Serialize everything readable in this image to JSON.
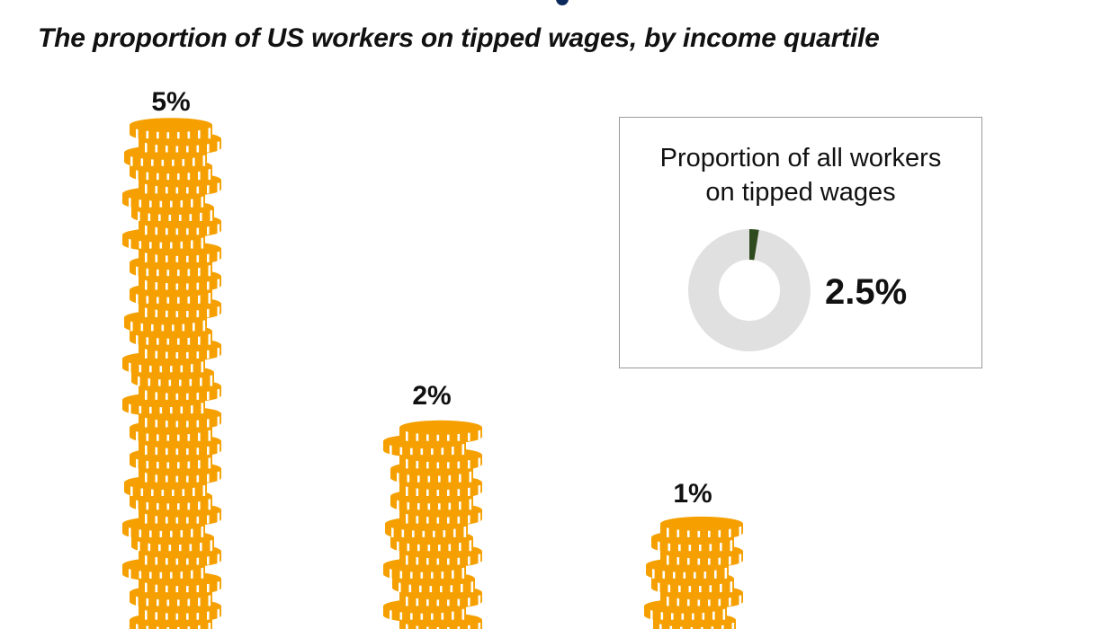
{
  "subtitle": "The proportion of US workers on tipped wages, by income quartile",
  "chart_data": {
    "type": "bar",
    "style": "stacked-coin-pictograph",
    "subtitle": "The proportion of US workers on tipped wages, by income quartile",
    "categories": [
      "",
      "",
      ""
    ],
    "values": [
      5,
      2,
      1
    ],
    "value_labels": [
      "5%",
      "2%",
      "1%"
    ],
    "unit": "%",
    "colors": {
      "coin": "#f5a000",
      "coin_ridge": "#ffffff",
      "donut_track": "#e0e0e0",
      "donut_fill": "#2e4a1e"
    }
  },
  "inset": {
    "title_line1": "Proportion of all workers",
    "title_line2": "on tipped wages",
    "value": 2.5,
    "value_label": "2.5%"
  }
}
